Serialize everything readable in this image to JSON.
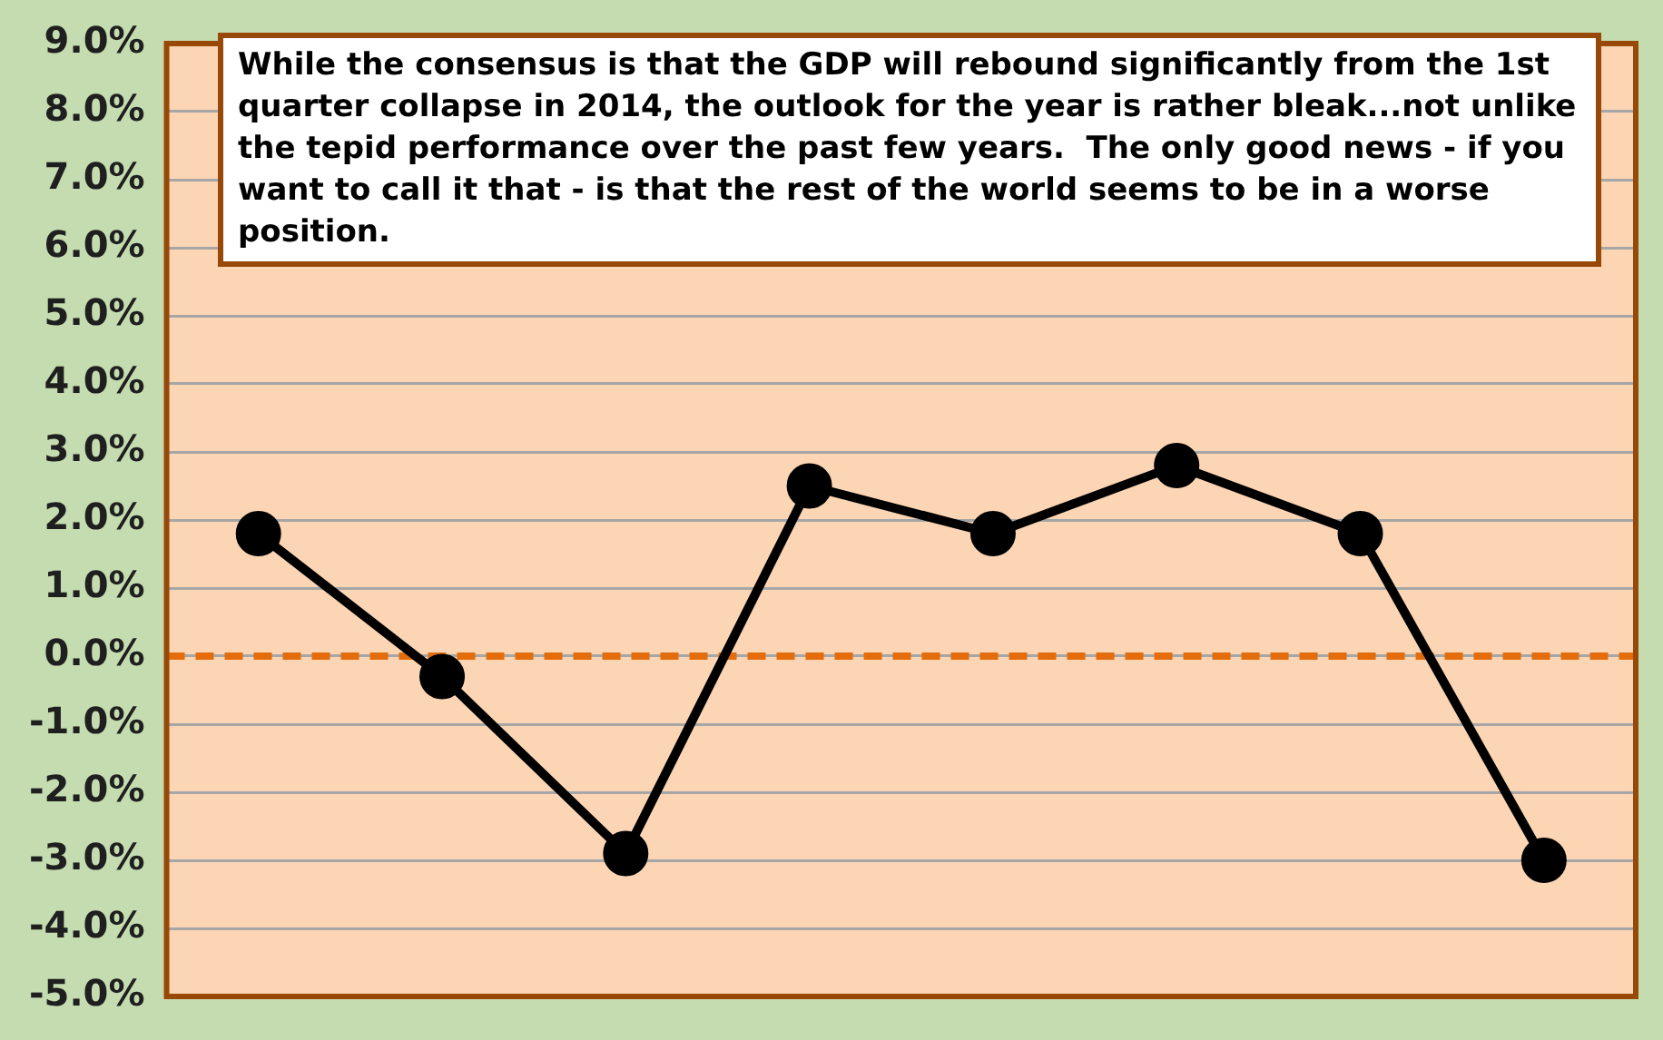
{
  "chart_data": {
    "type": "line",
    "categories": [
      null,
      null,
      null,
      null,
      null,
      null,
      null,
      null
    ],
    "series": [
      {
        "color": "#000000",
        "values": [
          1.8,
          -0.3,
          -2.9,
          2.5,
          1.8,
          2.8,
          1.8,
          -3.0
        ]
      }
    ],
    "ylim": [
      -5,
      9
    ],
    "yticks": [
      {
        "value": -5,
        "label": "-5.0%"
      },
      {
        "value": -4,
        "label": "-4.0%"
      },
      {
        "value": -3,
        "label": "-3.0%"
      },
      {
        "value": -2,
        "label": "-2.0%"
      },
      {
        "value": -1,
        "label": "-1.0%"
      },
      {
        "value": 0,
        "label": "0.0%"
      },
      {
        "value": 1,
        "label": "1.0%"
      },
      {
        "value": 2,
        "label": "2.0%"
      },
      {
        "value": 3,
        "label": "3.0%"
      },
      {
        "value": 4,
        "label": "4.0%"
      },
      {
        "value": 5,
        "label": "5.0%"
      },
      {
        "value": 6,
        "label": "6.0%"
      },
      {
        "value": 7,
        "label": "7.0%"
      },
      {
        "value": 8,
        "label": "8.0%"
      },
      {
        "value": 9,
        "label": "9.0%"
      }
    ],
    "ref_lines": [
      {
        "axis": "y",
        "value": 0,
        "color": "#e46c0a",
        "line_style": "dashed"
      }
    ],
    "annotations": [
      "While the consensus is that the GDP will rebound significantly from the 1st quarter collapse in 2014, the outlook for the year is rather bleak...not unlike the tepid performance over the past few years.  The only good news - if you want to call it that - is that the rest of the world seems to be in a worse position."
    ],
    "grid": "y",
    "legend": false,
    "tick_labels": "y",
    "marker": "circle",
    "line_style": "solid"
  }
}
